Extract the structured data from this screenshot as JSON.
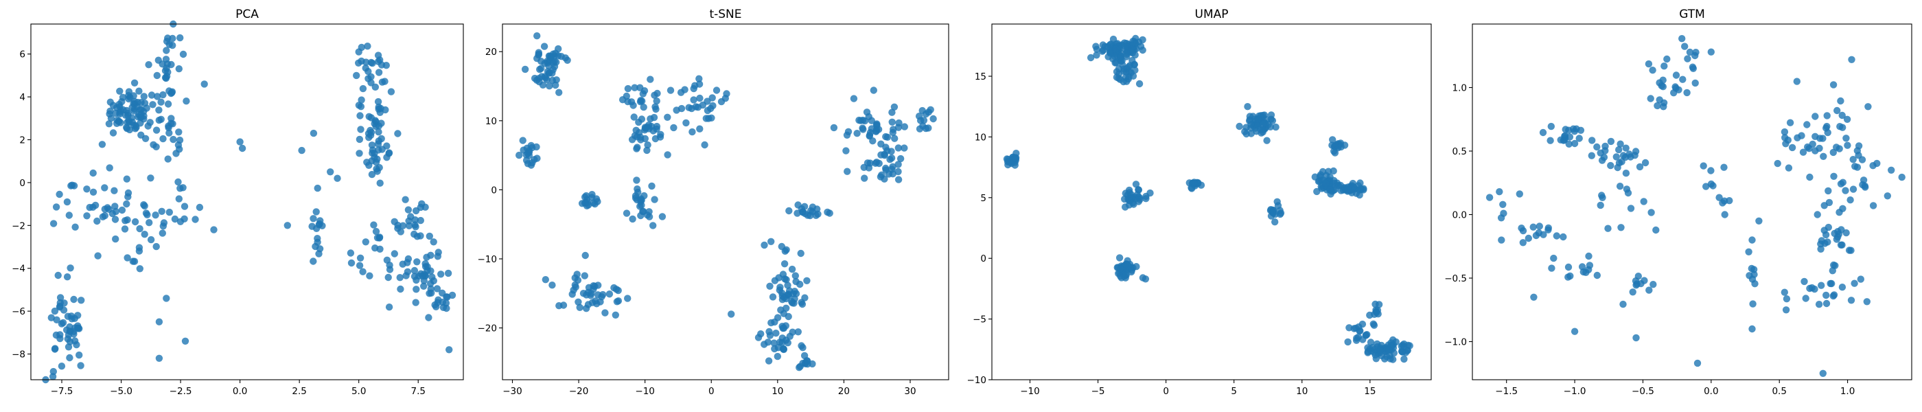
{
  "colors": {
    "marker": "#1f77b4",
    "background": "#ffffff",
    "axes": "#000000"
  },
  "chart_data": [
    {
      "type": "scatter",
      "title": "PCA",
      "xlabel": "",
      "ylabel": "",
      "xlim": [
        -8.8,
        9.4
      ],
      "ylim": [
        -9.2,
        7.4
      ],
      "xticks": [
        -7.5,
        -5.0,
        -2.5,
        0.0,
        2.5,
        5.0,
        7.5
      ],
      "xtick_labels": [
        "−7.5",
        "−5.0",
        "−2.5",
        "0.0",
        "2.5",
        "5.0",
        "7.5"
      ],
      "yticks": [
        -8,
        -6,
        -4,
        -2,
        0,
        2,
        4,
        6
      ],
      "ytick_labels": [
        "−8",
        "−6",
        "−4",
        "−2",
        "0",
        "2",
        "4",
        "6"
      ],
      "grid": false,
      "clusters": [
        {
          "cx": -4.7,
          "cy": 3.3,
          "sx": 0.55,
          "sy": 0.55,
          "n": 70
        },
        {
          "cx": -3.0,
          "cy": 5.2,
          "sx": 0.35,
          "sy": 1.2,
          "n": 35
        },
        {
          "cx": -3.2,
          "cy": 2.2,
          "sx": 0.6,
          "sy": 1.0,
          "n": 25
        },
        {
          "cx": -5.0,
          "cy": -1.5,
          "sx": 0.9,
          "sy": 0.8,
          "n": 40
        },
        {
          "cx": -6.8,
          "cy": -1.2,
          "sx": 0.6,
          "sy": 0.7,
          "n": 15
        },
        {
          "cx": -2.8,
          "cy": -1.5,
          "sx": 0.5,
          "sy": 0.6,
          "n": 15
        },
        {
          "cx": -7.3,
          "cy": -6.8,
          "sx": 0.45,
          "sy": 1.1,
          "n": 50
        },
        {
          "cx": 5.6,
          "cy": 4.6,
          "sx": 0.35,
          "sy": 0.8,
          "n": 30
        },
        {
          "cx": 5.8,
          "cy": 2.0,
          "sx": 0.45,
          "sy": 1.0,
          "n": 45
        },
        {
          "cx": 7.3,
          "cy": -1.8,
          "sx": 0.45,
          "sy": 0.5,
          "n": 20
        },
        {
          "cx": 7.8,
          "cy": -4.3,
          "sx": 0.45,
          "sy": 0.5,
          "n": 35
        },
        {
          "cx": 8.4,
          "cy": -5.5,
          "sx": 0.25,
          "sy": 0.35,
          "n": 15
        },
        {
          "cx": 6.0,
          "cy": -3.2,
          "sx": 0.6,
          "sy": 1.0,
          "n": 25
        },
        {
          "cx": 3.3,
          "cy": -2.0,
          "sx": 0.3,
          "sy": 0.8,
          "n": 15
        }
      ],
      "extra_points": [
        {
          "x": -3.1,
          "y": -5.4
        },
        {
          "x": -3.4,
          "y": -6.5
        },
        {
          "x": -3.4,
          "y": -8.2
        },
        {
          "x": -2.3,
          "y": -7.4
        },
        {
          "x": 0.0,
          "y": 1.9
        },
        {
          "x": 0.1,
          "y": 1.6
        },
        {
          "x": -1.5,
          "y": 4.6
        },
        {
          "x": -1.1,
          "y": -2.2
        },
        {
          "x": 2.0,
          "y": -2.0
        },
        {
          "x": 3.1,
          "y": 2.3
        },
        {
          "x": 2.6,
          "y": 1.5
        },
        {
          "x": 3.8,
          "y": 0.5
        },
        {
          "x": 4.1,
          "y": 0.2
        },
        {
          "x": 8.8,
          "y": -7.8
        },
        {
          "x": 4.9,
          "y": 5.0
        },
        {
          "x": 5.0,
          "y": 6.1
        }
      ]
    },
    {
      "type": "scatter",
      "title": "t-SNE",
      "xlabel": "",
      "ylabel": "",
      "xlim": [
        -31.5,
        35.8
      ],
      "ylim": [
        -27.5,
        24.0
      ],
      "xticks": [
        -30,
        -20,
        -10,
        0,
        10,
        20,
        30
      ],
      "xtick_labels": [
        "−30",
        "−20",
        "−10",
        "0",
        "10",
        "20",
        "30"
      ],
      "yticks": [
        -20,
        -10,
        0,
        10,
        20
      ],
      "ytick_labels": [
        "−20",
        "−10",
        "0",
        "10",
        "20"
      ],
      "grid": false,
      "clusters": [
        {
          "cx": -24.5,
          "cy": 18.0,
          "sx": 1.5,
          "sy": 2.2,
          "n": 50
        },
        {
          "cx": -27.5,
          "cy": 5.0,
          "sx": 0.7,
          "sy": 1.0,
          "n": 18
        },
        {
          "cx": -9.5,
          "cy": 8.0,
          "sx": 1.6,
          "sy": 1.5,
          "n": 35
        },
        {
          "cx": -10.5,
          "cy": 13.5,
          "sx": 1.5,
          "sy": 1.2,
          "n": 18
        },
        {
          "cx": -1.5,
          "cy": 12.0,
          "sx": 2.0,
          "sy": 2.0,
          "n": 30
        },
        {
          "cx": -18.0,
          "cy": -1.5,
          "sx": 0.6,
          "sy": 0.5,
          "n": 15
        },
        {
          "cx": -10.0,
          "cy": -2.0,
          "sx": 1.2,
          "sy": 2.0,
          "n": 25
        },
        {
          "cx": -18.0,
          "cy": -15.0,
          "sx": 2.2,
          "sy": 1.5,
          "n": 40
        },
        {
          "cx": 11.5,
          "cy": -15.0,
          "sx": 1.2,
          "sy": 3.0,
          "n": 50
        },
        {
          "cx": 10.5,
          "cy": -22.0,
          "sx": 1.5,
          "sy": 1.5,
          "n": 25
        },
        {
          "cx": 14.0,
          "cy": -25.0,
          "sx": 0.8,
          "sy": 0.5,
          "n": 10
        },
        {
          "cx": 15.0,
          "cy": -3.3,
          "sx": 1.5,
          "sy": 0.5,
          "n": 18
        },
        {
          "cx": 24.5,
          "cy": 8.0,
          "sx": 2.5,
          "sy": 2.0,
          "n": 45
        },
        {
          "cx": 26.0,
          "cy": 3.0,
          "sx": 1.5,
          "sy": 1.2,
          "n": 25
        },
        {
          "cx": 32.0,
          "cy": 10.0,
          "sx": 0.8,
          "sy": 0.8,
          "n": 12
        }
      ],
      "extra_points": [
        {
          "x": -25.0,
          "y": -13.0
        },
        {
          "x": -24.0,
          "y": -13.8
        },
        {
          "x": -19.0,
          "y": -9.5
        },
        {
          "x": 3.0,
          "y": -18.0
        },
        {
          "x": 8.0,
          "y": -8.0
        },
        {
          "x": 9.0,
          "y": -7.5
        },
        {
          "x": 21.5,
          "y": 13.2
        },
        {
          "x": 18.5,
          "y": 9.0
        },
        {
          "x": -4.0,
          "y": 14.5
        },
        {
          "x": -1.0,
          "y": 6.5
        }
      ]
    },
    {
      "type": "scatter",
      "title": "UMAP",
      "xlabel": "",
      "ylabel": "",
      "xlim": [
        -12.8,
        19.5
      ],
      "ylim": [
        -10.0,
        19.3
      ],
      "xticks": [
        -10,
        -5,
        0,
        5,
        10,
        15
      ],
      "xtick_labels": [
        "−10",
        "−5",
        "0",
        "5",
        "10",
        "15"
      ],
      "yticks": [
        -10,
        -5,
        0,
        5,
        10,
        15
      ],
      "ytick_labels": [
        "−10",
        "−5",
        "0",
        "5",
        "10",
        "15"
      ],
      "grid": false,
      "clusters": [
        {
          "cx": -11.3,
          "cy": 8.0,
          "sx": 0.25,
          "sy": 0.25,
          "n": 20
        },
        {
          "cx": -4.0,
          "cy": 17.1,
          "sx": 0.6,
          "sy": 0.35,
          "n": 50
        },
        {
          "cx": -2.5,
          "cy": 17.5,
          "sx": 0.35,
          "sy": 0.3,
          "n": 25
        },
        {
          "cx": -3.0,
          "cy": 15.5,
          "sx": 0.4,
          "sy": 0.8,
          "n": 35
        },
        {
          "cx": -2.3,
          "cy": 4.9,
          "sx": 0.4,
          "sy": 0.4,
          "n": 30
        },
        {
          "cx": 2.0,
          "cy": 6.1,
          "sx": 0.2,
          "sy": 0.25,
          "n": 15
        },
        {
          "cx": -3.0,
          "cy": -0.8,
          "sx": 0.4,
          "sy": 0.4,
          "n": 40
        },
        {
          "cx": 6.8,
          "cy": 11.0,
          "sx": 0.6,
          "sy": 0.6,
          "n": 50
        },
        {
          "cx": 8.0,
          "cy": 3.8,
          "sx": 0.25,
          "sy": 0.35,
          "n": 15
        },
        {
          "cx": 11.8,
          "cy": 6.0,
          "sx": 0.4,
          "sy": 0.6,
          "n": 40
        },
        {
          "cx": 13.5,
          "cy": 5.8,
          "sx": 0.7,
          "sy": 0.3,
          "n": 40
        },
        {
          "cx": 12.5,
          "cy": 9.3,
          "sx": 0.3,
          "sy": 0.3,
          "n": 15
        },
        {
          "cx": 16.3,
          "cy": -7.5,
          "sx": 0.9,
          "sy": 0.35,
          "n": 60
        },
        {
          "cx": 14.2,
          "cy": -6.0,
          "sx": 0.4,
          "sy": 0.4,
          "n": 15
        },
        {
          "cx": 15.3,
          "cy": -4.6,
          "sx": 0.3,
          "sy": 0.5,
          "n": 10
        }
      ],
      "extra_points": [
        {
          "x": -1.7,
          "y": -1.6
        },
        {
          "x": -1.5,
          "y": -1.7
        },
        {
          "x": 6.0,
          "y": 12.5
        },
        {
          "x": 17.5,
          "y": -8.3
        }
      ]
    },
    {
      "type": "scatter",
      "title": "GTM",
      "xlabel": "",
      "ylabel": "",
      "xlim": [
        -1.75,
        1.47
      ],
      "ylim": [
        -1.3,
        1.5
      ],
      "xticks": [
        -1.5,
        -1.0,
        -0.5,
        0.0,
        0.5,
        1.0
      ],
      "xtick_labels": [
        "−1.5",
        "−1.0",
        "−0.5",
        "0.0",
        "0.5",
        "1.0"
      ],
      "yticks": [
        -1.0,
        -0.5,
        0.0,
        0.5,
        1.0
      ],
      "ytick_labels": [
        "−1.0",
        "−0.5",
        "0.0",
        "0.5",
        "1.0"
      ],
      "grid": false,
      "clusters": [
        {
          "cx": -1.05,
          "cy": 0.62,
          "sx": 0.08,
          "sy": 0.04,
          "n": 20
        },
        {
          "cx": -0.7,
          "cy": 0.45,
          "sx": 0.12,
          "sy": 0.06,
          "n": 25
        },
        {
          "cx": -0.32,
          "cy": 1.0,
          "sx": 0.1,
          "sy": 0.12,
          "n": 20
        },
        {
          "cx": -1.3,
          "cy": -0.15,
          "sx": 0.12,
          "sy": 0.05,
          "n": 15
        },
        {
          "cx": -0.95,
          "cy": -0.45,
          "sx": 0.1,
          "sy": 0.08,
          "n": 12
        },
        {
          "cx": -0.5,
          "cy": -0.55,
          "sx": 0.08,
          "sy": 0.05,
          "n": 10
        },
        {
          "cx": 0.3,
          "cy": -0.5,
          "sx": 0.02,
          "sy": 0.08,
          "n": 8
        },
        {
          "cx": 0.85,
          "cy": 0.65,
          "sx": 0.12,
          "sy": 0.15,
          "n": 30
        },
        {
          "cx": 1.05,
          "cy": 0.3,
          "sx": 0.12,
          "sy": 0.15,
          "n": 25
        },
        {
          "cx": 0.9,
          "cy": -0.15,
          "sx": 0.08,
          "sy": 0.15,
          "n": 25
        },
        {
          "cx": 0.85,
          "cy": -0.6,
          "sx": 0.12,
          "sy": 0.08,
          "n": 20
        },
        {
          "cx": 0.6,
          "cy": 0.55,
          "sx": 0.05,
          "sy": 0.12,
          "n": 10
        },
        {
          "cx": 0.05,
          "cy": 0.25,
          "sx": 0.08,
          "sy": 0.08,
          "n": 10
        },
        {
          "cx": -0.15,
          "cy": 1.25,
          "sx": 0.05,
          "sy": 0.08,
          "n": 8
        },
        {
          "cx": -0.65,
          "cy": 0.1,
          "sx": 0.15,
          "sy": 0.15,
          "n": 12
        },
        {
          "cx": -1.55,
          "cy": 0.12,
          "sx": 0.05,
          "sy": 0.05,
          "n": 5
        }
      ],
      "extra_points": [
        {
          "x": -0.1,
          "y": -1.17
        },
        {
          "x": 0.82,
          "y": -1.25
        },
        {
          "x": 1.03,
          "y": 1.22
        },
        {
          "x": 1.15,
          "y": 0.85
        },
        {
          "x": -1.0,
          "y": -0.92
        },
        {
          "x": -0.55,
          "y": -0.97
        },
        {
          "x": 0.3,
          "y": -0.9
        },
        {
          "x": 0.55,
          "y": -0.75
        },
        {
          "x": 1.32,
          "y": 0.35
        },
        {
          "x": 0.35,
          "y": -0.05
        },
        {
          "x": 0.3,
          "y": -0.2
        },
        {
          "x": -0.35,
          "y": 0.85
        },
        {
          "x": 0.0,
          "y": 1.28
        },
        {
          "x": 0.1,
          "y": -0.0
        },
        {
          "x": -1.3,
          "y": -0.65
        }
      ]
    }
  ]
}
